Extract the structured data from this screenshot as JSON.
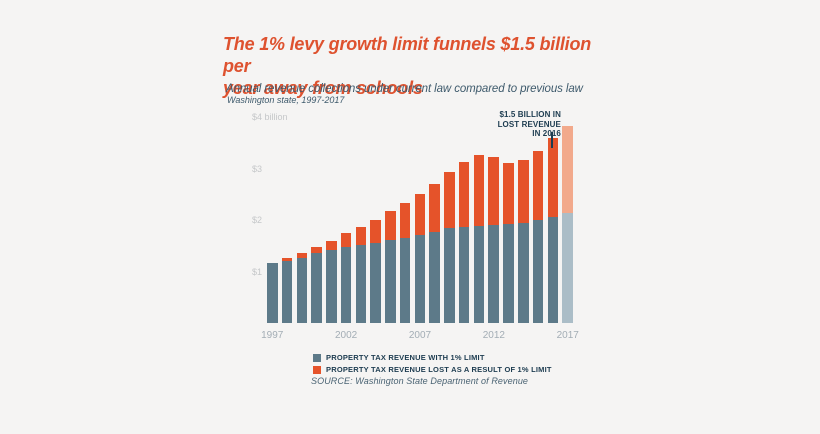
{
  "header": {
    "title_line1": "The 1% levy growth limit funnels $1.5 billion per",
    "title_line2": "year away from schools",
    "subtitle": "Annual revenue collections under current law compared to previous law",
    "context": "Washington state, 1997-2017"
  },
  "annotation": {
    "line1": "$1.5 BILLION IN",
    "line2": "LOST REVENUE",
    "line3": "IN 2016"
  },
  "legend": {
    "items": [
      {
        "label": "PROPERTY TAX REVENUE WITH 1% LIMIT",
        "color": "#5d7a89"
      },
      {
        "label": "PROPERTY TAX REVENUE LOST AS A RESULT OF 1% LIMIT",
        "color": "#e5532a"
      }
    ]
  },
  "source": "SOURCE: Washington State Department of Revenue",
  "colors": {
    "background": "#f5f4f3",
    "title": "#de522f",
    "subtitle": "#3e5a6c",
    "bar_base": "#5d7a89",
    "bar_lost": "#e5532a",
    "bar_base_projected": "#abbdc7",
    "bar_lost_projected": "#f2a98b",
    "annotation_text": "#1d3c50",
    "y_axis_label": "#c5c7c9",
    "x_axis_label": "#a3adb5"
  },
  "chart_data": {
    "type": "bar",
    "stacked": true,
    "title": "Annual revenue collections under current law compared to previous law",
    "units": "billions of US dollars",
    "x": [
      1997,
      1998,
      1999,
      2000,
      2001,
      2002,
      2003,
      2004,
      2005,
      2006,
      2007,
      2008,
      2009,
      2010,
      2011,
      2012,
      2013,
      2014,
      2015,
      2016,
      2017
    ],
    "series": [
      {
        "name": "Property tax revenue with 1% limit",
        "color": "#5d7a89",
        "values": [
          1.17,
          1.2,
          1.27,
          1.36,
          1.41,
          1.47,
          1.52,
          1.56,
          1.61,
          1.65,
          1.7,
          1.76,
          1.84,
          1.86,
          1.88,
          1.91,
          1.93,
          1.95,
          2.01,
          2.06,
          2.13
        ]
      },
      {
        "name": "Property tax revenue lost as a result of 1% limit",
        "color": "#e5532a",
        "values": [
          0.0,
          0.06,
          0.09,
          0.11,
          0.18,
          0.27,
          0.35,
          0.45,
          0.56,
          0.68,
          0.8,
          0.94,
          1.09,
          1.26,
          1.39,
          1.31,
          1.18,
          1.21,
          1.33,
          1.54,
          1.7
        ]
      }
    ],
    "projected_year": 2017,
    "ylim": [
      0,
      4
    ],
    "y_ticks": [
      1,
      2,
      3,
      4
    ],
    "y_tick_labels": [
      "$1",
      "$2",
      "$3",
      "$4 billion"
    ],
    "x_tick_indices": [
      0,
      5,
      10,
      15,
      20
    ],
    "x_tick_labels": [
      "1997",
      "2002",
      "2007",
      "2012",
      "2017"
    ],
    "grid": false,
    "legend_position": "bottom",
    "annotation_value": "$1.5 billion lost revenue in 2016"
  }
}
